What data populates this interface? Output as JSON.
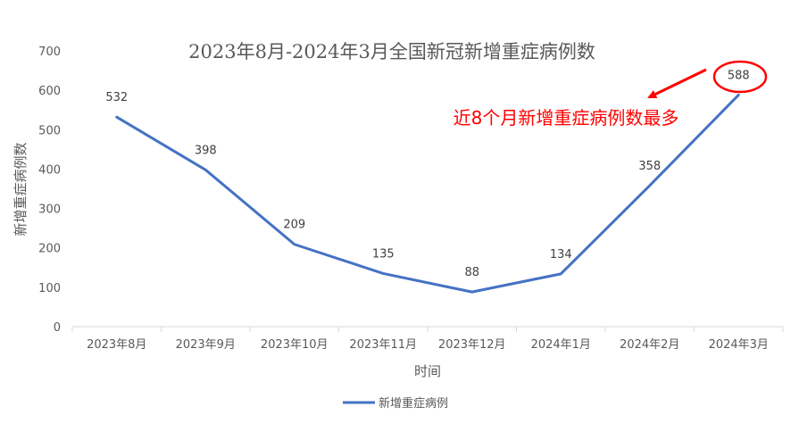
{
  "chart_data": {
    "type": "line",
    "title": "2023年8月-2024年3月全国新冠新增重症病例数",
    "xlabel": "时间",
    "ylabel": "新增重症病例数",
    "categories": [
      "2023年8月",
      "2023年9月",
      "2023年10月",
      "2023年11月",
      "2023年12月",
      "2024年1月",
      "2024年2月",
      "2024年3月"
    ],
    "series": [
      {
        "name": "新增重症病例",
        "values": [
          532,
          398,
          209,
          135,
          88,
          134,
          358,
          588
        ],
        "color": "#4472c4"
      }
    ],
    "ylim": [
      0,
      700
    ],
    "yticks": [
      0,
      100,
      200,
      300,
      400,
      500,
      600,
      700
    ],
    "grid": false,
    "legend_position": "bottom",
    "data_labels": true,
    "annotation": {
      "text": "近8个月新增重症病例数最多",
      "color": "#ff0000",
      "highlight_category": "2024年3月"
    }
  }
}
